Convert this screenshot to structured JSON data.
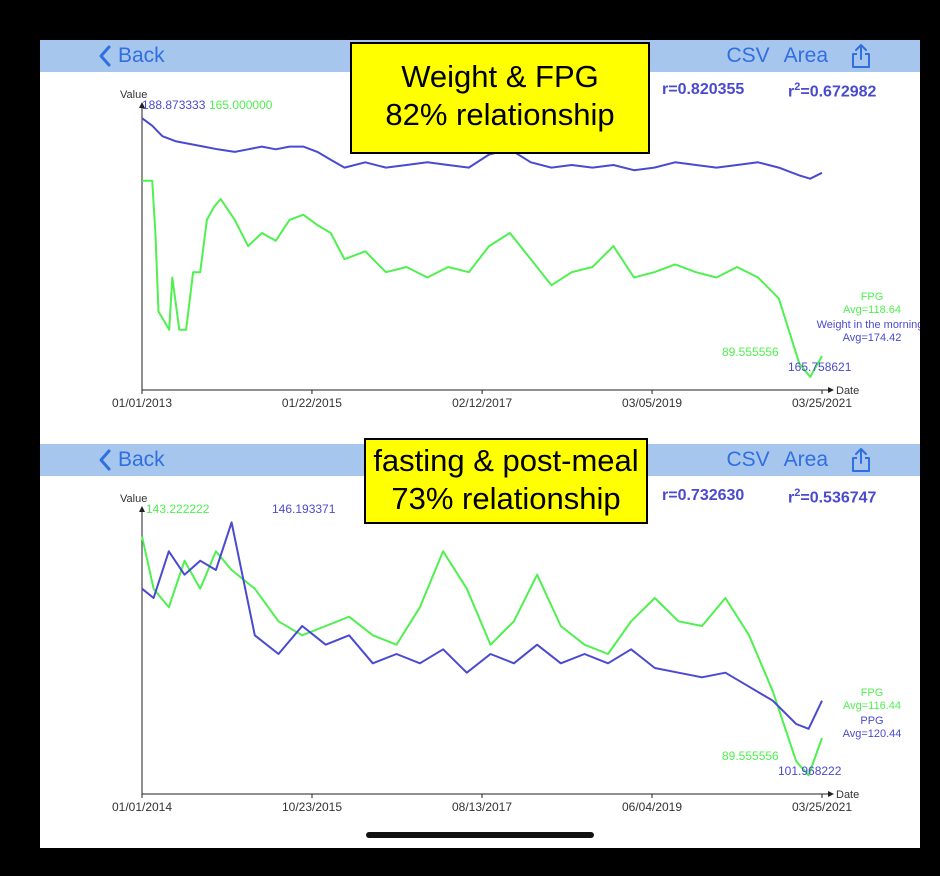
{
  "colors": {
    "nav_bg": "#a7c6ee",
    "nav_text": "#2f6fe0",
    "green_series": "#4ff04f",
    "blue_series": "#4a4ad0",
    "callout_bg": "#ffff00"
  },
  "icons": [
    "chevron-left-icon",
    "share-icon"
  ],
  "panels": [
    {
      "nav": {
        "back": "Back",
        "csv": "CSV",
        "area": "Area"
      },
      "callout": {
        "line1": "Weight & FPG",
        "line2": "82% relationship"
      },
      "stats": {
        "r": "r=0.820355",
        "r2_prefix": "r",
        "r2_exp": "2",
        "r2_value": "=0.672982"
      },
      "chart_data": {
        "type": "line",
        "ylabel": "Value",
        "xlabel": "Date",
        "x_tick_labels": [
          "01/01/2013",
          "01/22/2015",
          "02/12/2017",
          "03/05/2019",
          "03/25/2021"
        ],
        "annotations": {
          "blue_max": "188.873333",
          "green_max": "165.000000",
          "green_min": "89.555556",
          "blue_min": "165.758621"
        },
        "legend": [
          {
            "name": "FPG",
            "avg": "Avg=118.64",
            "color": "#4ff04f"
          },
          {
            "name": "Weight in the morning",
            "avg": "Avg=174.42",
            "color": "#4a4ad0"
          }
        ],
        "series": [
          {
            "name": "FPG",
            "color": "#4ff04f",
            "x": [
              "2013-01-01",
              "2013-02-15",
              "2013-03-01",
              "2013-03-15",
              "2013-05-01",
              "2013-05-15",
              "2013-06-15",
              "2013-07-15",
              "2013-08-15",
              "2013-09-15",
              "2013-10-15",
              "2013-11-15",
              "2013-12-15",
              "2014-02-15",
              "2014-04-15",
              "2014-06-15",
              "2014-08-15",
              "2014-10-15",
              "2014-12-15",
              "2015-02-15",
              "2015-04-15",
              "2015-06-15",
              "2015-09-15",
              "2015-12-15",
              "2016-03-15",
              "2016-06-15",
              "2016-09-15",
              "2016-12-15",
              "2017-03-15",
              "2017-06-15",
              "2017-09-15",
              "2017-12-15",
              "2018-03-15",
              "2018-06-15",
              "2018-09-15",
              "2018-12-15",
              "2019-03-15",
              "2019-06-15",
              "2019-09-15",
              "2019-12-15",
              "2020-03-15",
              "2020-06-15",
              "2020-09-15",
              "2020-12-15",
              "2021-02-01",
              "2021-03-25"
            ],
            "values": [
              165,
              165,
              145,
              115,
              108,
              128,
              108,
              108,
              130,
              130,
              150,
              155,
              158,
              150,
              140,
              145,
              142,
              150,
              152,
              148,
              145,
              135,
              138,
              130,
              132,
              128,
              132,
              130,
              140,
              145,
              135,
              125,
              130,
              132,
              140,
              128,
              130,
              133,
              130,
              128,
              132,
              128,
              120,
              95,
              90,
              98
            ]
          },
          {
            "name": "Weight in the morning",
            "color": "#4a4ad0",
            "x": [
              "2013-01-01",
              "2013-02-15",
              "2013-04-01",
              "2013-06-01",
              "2013-08-01",
              "2013-10-01",
              "2013-12-01",
              "2014-02-15",
              "2014-04-15",
              "2014-06-15",
              "2014-08-15",
              "2014-10-15",
              "2014-12-15",
              "2015-02-15",
              "2015-04-15",
              "2015-06-15",
              "2015-09-15",
              "2015-12-15",
              "2016-03-15",
              "2016-06-15",
              "2016-09-15",
              "2016-12-15",
              "2017-03-15",
              "2017-06-15",
              "2017-09-15",
              "2017-12-15",
              "2018-03-15",
              "2018-06-15",
              "2018-09-15",
              "2018-12-15",
              "2019-03-15",
              "2019-06-15",
              "2019-09-15",
              "2019-12-15",
              "2020-03-15",
              "2020-06-15",
              "2020-09-15",
              "2020-12-15",
              "2021-02-01",
              "2021-03-25"
            ],
            "values": [
              188.87,
              186,
              182,
              180,
              179,
              178,
              177,
              176,
              177,
              178,
              177,
              178,
              178,
              176,
              173,
              170,
              172,
              170,
              171,
              172,
              171,
              170,
              175,
              177,
              172,
              170,
              171,
              170,
              171,
              169,
              170,
              172,
              171,
              170,
              171,
              172,
              170,
              167,
              165.76,
              168
            ]
          }
        ]
      }
    },
    {
      "nav": {
        "back": "Back",
        "csv": "CSV",
        "area": "Area"
      },
      "callout": {
        "line1": "fasting & post-meal",
        "line2": "73% relationship"
      },
      "stats": {
        "r": "r=0.732630",
        "r2_prefix": "r",
        "r2_exp": "2",
        "r2_value": "=0.536747"
      },
      "chart_data": {
        "type": "line",
        "ylabel": "Value",
        "xlabel": "Date",
        "x_tick_labels": [
          "01/01/2014",
          "10/23/2015",
          "08/13/2017",
          "06/04/2019",
          "03/25/2021"
        ],
        "annotations": {
          "green_max": "143.222222",
          "blue_max": "146.193371",
          "green_min": "89.555556",
          "blue_min": "101.968222"
        },
        "legend": [
          {
            "name": "FPG",
            "avg": "Avg=116.44",
            "color": "#4ff04f"
          },
          {
            "name": "PPG",
            "avg": "Avg=120.44",
            "color": "#4a4ad0"
          }
        ],
        "series": [
          {
            "name": "FPG",
            "color": "#4ff04f",
            "x": [
              "2014-01-01",
              "2014-02-15",
              "2014-04-15",
              "2014-06-15",
              "2014-08-15",
              "2014-10-15",
              "2014-12-15",
              "2015-03-15",
              "2015-06-15",
              "2015-09-15",
              "2015-12-15",
              "2016-03-15",
              "2016-06-15",
              "2016-09-15",
              "2016-12-15",
              "2017-03-15",
              "2017-06-15",
              "2017-09-15",
              "2017-12-15",
              "2018-03-15",
              "2018-06-15",
              "2018-09-15",
              "2018-12-15",
              "2019-03-15",
              "2019-06-15",
              "2019-09-15",
              "2019-12-15",
              "2020-03-15",
              "2020-06-15",
              "2020-09-15",
              "2020-12-15",
              "2021-02-01",
              "2021-03-25"
            ],
            "values": [
              143.22,
              132,
              128,
              138,
              132,
              140,
              136,
              132,
              125,
              122,
              124,
              126,
              122,
              120,
              128,
              140,
              132,
              120,
              125,
              135,
              124,
              120,
              118,
              125,
              130,
              125,
              124,
              130,
              122,
              110,
              95,
              92,
              100
            ]
          },
          {
            "name": "PPG",
            "color": "#4a4ad0",
            "x": [
              "2014-01-01",
              "2014-02-15",
              "2014-04-15",
              "2014-06-15",
              "2014-08-15",
              "2014-10-15",
              "2014-12-15",
              "2015-03-15",
              "2015-06-15",
              "2015-09-15",
              "2015-12-15",
              "2016-03-15",
              "2016-06-15",
              "2016-09-15",
              "2016-12-15",
              "2017-03-15",
              "2017-06-15",
              "2017-09-15",
              "2017-12-15",
              "2018-03-15",
              "2018-06-15",
              "2018-09-15",
              "2018-12-15",
              "2019-03-15",
              "2019-06-15",
              "2019-09-15",
              "2019-12-15",
              "2020-03-15",
              "2020-06-15",
              "2020-09-15",
              "2020-12-15",
              "2021-02-01",
              "2021-03-25"
            ],
            "values": [
              132,
              130,
              140,
              135,
              138,
              136,
              146.19,
              122,
              118,
              124,
              120,
              122,
              116,
              118,
              116,
              119,
              114,
              118,
              116,
              120,
              116,
              118,
              116,
              119,
              115,
              114,
              113,
              114,
              111,
              108,
              103,
              101.97,
              108
            ]
          }
        ]
      }
    }
  ]
}
